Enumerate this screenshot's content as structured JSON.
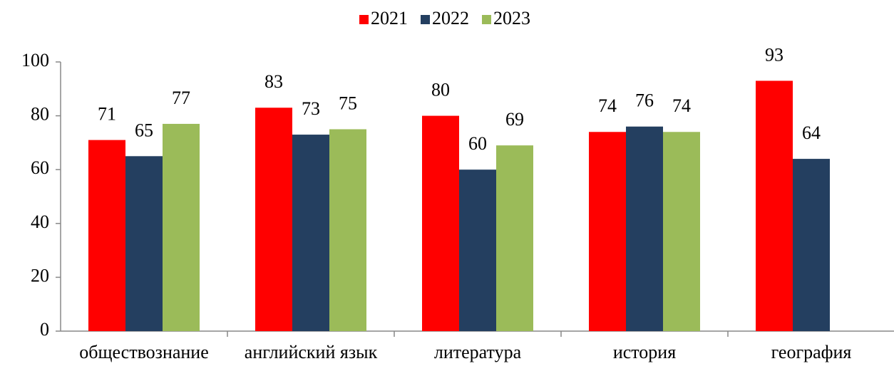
{
  "chart_data": {
    "type": "bar",
    "categories": [
      "обществознание",
      "английский язык",
      "литература",
      "история",
      "география"
    ],
    "series": [
      {
        "name": "2021",
        "color": "#ff0000",
        "values": [
          71,
          83,
          80,
          74,
          93
        ]
      },
      {
        "name": "2022",
        "color": "#243f60",
        "values": [
          65,
          73,
          60,
          76,
          64
        ]
      },
      {
        "name": "2023",
        "color": "#9bbb59",
        "values": [
          77,
          75,
          69,
          74,
          null
        ]
      }
    ],
    "ylim": [
      0,
      100
    ],
    "yticks": [
      0,
      20,
      40,
      60,
      80,
      100
    ],
    "grid": false,
    "legend": "top"
  }
}
